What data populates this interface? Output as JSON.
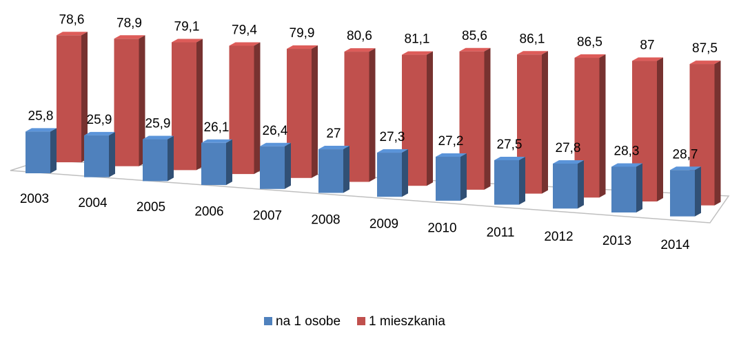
{
  "chart_data": {
    "type": "bar3d",
    "categories": [
      "2003",
      "2004",
      "2005",
      "2006",
      "2007",
      "2008",
      "2009",
      "2010",
      "2011",
      "2012",
      "2013",
      "2014"
    ],
    "series": [
      {
        "name": "na 1 osobe",
        "color": "#4f81bd",
        "values": [
          25.8,
          25.9,
          25.9,
          26.1,
          26.4,
          27,
          27.3,
          27.2,
          27.5,
          27.8,
          28.3,
          28.7
        ],
        "value_labels": [
          "25,8",
          "25,9",
          "25,9",
          "26,1",
          "26,4",
          "27",
          "27,3",
          "27,2",
          "27,5",
          "27,8",
          "28,3",
          "28,7"
        ]
      },
      {
        "name": "1 mieszkania",
        "color": "#c0504d",
        "values": [
          78.6,
          78.9,
          79.1,
          79.4,
          79.9,
          80.6,
          81.1,
          85.6,
          86.1,
          86.5,
          87,
          87.5
        ],
        "value_labels": [
          "78,6",
          "78,9",
          "79,1",
          "79,4",
          "79,9",
          "80,6",
          "81,1",
          "85,6",
          "86,1",
          "86,5",
          "87",
          "87,5"
        ]
      }
    ],
    "legend": "bottom"
  }
}
